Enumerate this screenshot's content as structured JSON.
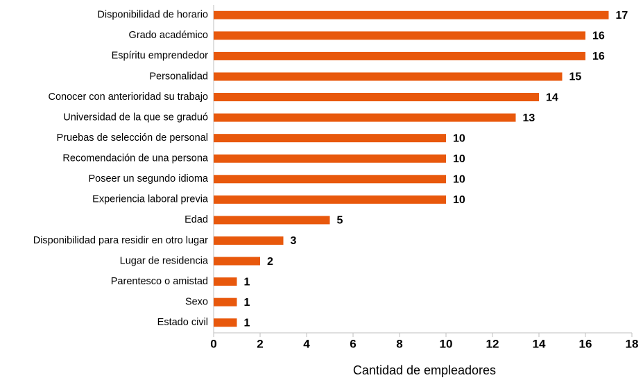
{
  "chart_data": {
    "type": "bar",
    "orientation": "horizontal",
    "x_label": "Cantidad de empleadores",
    "categories": [
      "Disponibilidad de horario",
      "Grado académico",
      "Espíritu emprendedor",
      "Personalidad",
      "Conocer con anterioridad su trabajo",
      "Universidad de la que se graduó",
      "Pruebas de selección de personal",
      "Recomendación de una persona",
      "Poseer un segundo idioma",
      "Experiencia laboral previa",
      "Edad",
      "Disponibilidad para residir en otro lugar",
      "Lugar de residencia",
      "Parentesco o amistad",
      "Sexo",
      "Estado civil"
    ],
    "values": [
      17,
      16,
      16,
      15,
      14,
      13,
      10,
      10,
      10,
      10,
      5,
      3,
      2,
      1,
      1,
      1
    ],
    "color": "#e8580c",
    "xlim": [
      0,
      18
    ],
    "xticks": [
      0,
      2,
      4,
      6,
      8,
      10,
      12,
      14,
      16,
      18
    ],
    "grid": false
  }
}
